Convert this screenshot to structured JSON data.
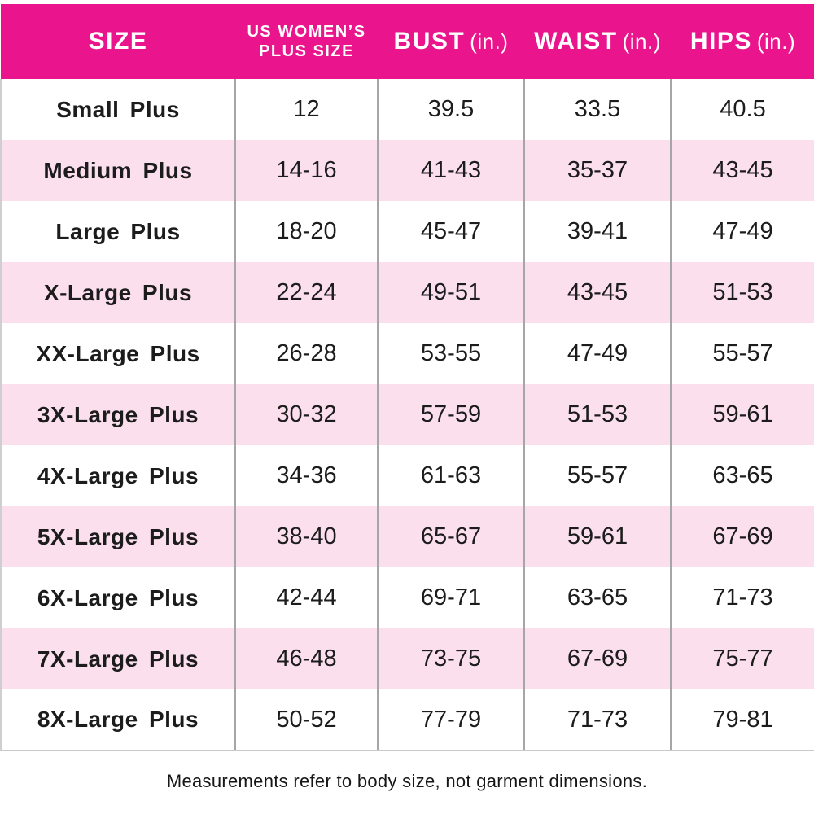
{
  "header": {
    "size": "SIZE",
    "us_plus_line1": "US WOMEN’S",
    "us_plus_line2": "PLUS SIZE",
    "bust": "BUST",
    "waist": "WAIST",
    "hips": "HIPS",
    "unit": "(in.)"
  },
  "rows": [
    {
      "size": "Small Plus",
      "us_plus": "12",
      "bust": "39.5",
      "waist": "33.5",
      "hips": "40.5"
    },
    {
      "size": "Medium Plus",
      "us_plus": "14-16",
      "bust": "41-43",
      "waist": "35-37",
      "hips": "43-45"
    },
    {
      "size": "Large Plus",
      "us_plus": "18-20",
      "bust": "45-47",
      "waist": "39-41",
      "hips": "47-49"
    },
    {
      "size": "X-Large Plus",
      "us_plus": "22-24",
      "bust": "49-51",
      "waist": "43-45",
      "hips": "51-53"
    },
    {
      "size": "XX-Large Plus",
      "us_plus": "26-28",
      "bust": "53-55",
      "waist": "47-49",
      "hips": "55-57"
    },
    {
      "size": "3X-Large Plus",
      "us_plus": "30-32",
      "bust": "57-59",
      "waist": "51-53",
      "hips": "59-61"
    },
    {
      "size": "4X-Large Plus",
      "us_plus": "34-36",
      "bust": "61-63",
      "waist": "55-57",
      "hips": "63-65"
    },
    {
      "size": "5X-Large Plus",
      "us_plus": "38-40",
      "bust": "65-67",
      "waist": "59-61",
      "hips": "67-69"
    },
    {
      "size": "6X-Large Plus",
      "us_plus": "42-44",
      "bust": "69-71",
      "waist": "63-65",
      "hips": "71-73"
    },
    {
      "size": "7X-Large Plus",
      "us_plus": "46-48",
      "bust": "73-75",
      "waist": "67-69",
      "hips": "75-77"
    },
    {
      "size": "8X-Large Plus",
      "us_plus": "50-52",
      "bust": "77-79",
      "waist": "71-73",
      "hips": "79-81"
    }
  ],
  "footer": {
    "note": "Measurements refer to body size, not garment dimensions."
  },
  "colors": {
    "header_bg": "#EA148D",
    "header_text": "#FFFFFF",
    "alt_row_bg": "#FBDFED",
    "grid_line": "#A6A6A6",
    "outer_border": "#CFCFCF",
    "text": "#1C1C1C"
  },
  "chart_data": {
    "type": "table",
    "title": "Plus size chart (US Women's, inches)",
    "columns": [
      "SIZE",
      "US WOMEN’S PLUS SIZE",
      "BUST (in.)",
      "WAIST (in.)",
      "HIPS (in.)"
    ],
    "rows": [
      [
        "Small Plus",
        "12",
        "39.5",
        "33.5",
        "40.5"
      ],
      [
        "Medium Plus",
        "14-16",
        "41-43",
        "35-37",
        "43-45"
      ],
      [
        "Large Plus",
        "18-20",
        "45-47",
        "39-41",
        "47-49"
      ],
      [
        "X-Large Plus",
        "22-24",
        "49-51",
        "43-45",
        "51-53"
      ],
      [
        "XX-Large Plus",
        "26-28",
        "53-55",
        "47-49",
        "55-57"
      ],
      [
        "3X-Large Plus",
        "30-32",
        "57-59",
        "51-53",
        "59-61"
      ],
      [
        "4X-Large Plus",
        "34-36",
        "61-63",
        "55-57",
        "63-65"
      ],
      [
        "5X-Large Plus",
        "38-40",
        "65-67",
        "59-61",
        "67-69"
      ],
      [
        "6X-Large Plus",
        "42-44",
        "69-71",
        "63-65",
        "71-73"
      ],
      [
        "7X-Large Plus",
        "46-48",
        "73-75",
        "67-69",
        "75-77"
      ],
      [
        "8X-Large Plus",
        "50-52",
        "77-79",
        "71-73",
        "79-81"
      ]
    ],
    "annotations": [
      "Measurements refer to body size, not garment dimensions."
    ]
  }
}
